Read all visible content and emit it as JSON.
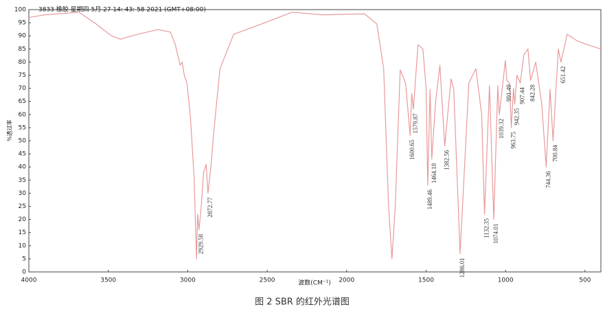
{
  "chart_data": {
    "type": "line",
    "header": "3833 橡胶 星期四 5月 27 14: 43: 58 2021 (GMT+08:00)",
    "y_label": "%透过率",
    "x_label": "波数(CM⁻¹)",
    "caption": "图 2  SBR 的红外光谱图",
    "xlim": [
      4000,
      400
    ],
    "xticks": [
      4000,
      3500,
      3000,
      2500,
      2000,
      1500,
      1000,
      500
    ],
    "ylim": [
      0,
      100
    ],
    "yticks": [
      0,
      5,
      10,
      15,
      20,
      25,
      30,
      35,
      40,
      45,
      50,
      55,
      60,
      65,
      70,
      75,
      80,
      85,
      90,
      95,
      100
    ],
    "series": [
      {
        "color": "#e8999a",
        "x": [
          4000,
          3900,
          3684,
          3576,
          3480,
          3424,
          3380,
          3316,
          3187,
          3109,
          3078,
          3048,
          3035,
          3022,
          3005,
          2983,
          2960,
          2945,
          2938,
          2929.58,
          2915,
          2900,
          2884,
          2872.77,
          2853,
          2832,
          2797,
          2711,
          2537,
          2343,
          2148,
          1888,
          1810,
          1767,
          1736,
          1715,
          1694,
          1663,
          1629,
          1600.65,
          1590,
          1579.87,
          1551,
          1520,
          1500,
          1489.46,
          1475,
          1464.18,
          1440,
          1413,
          1382.56,
          1343,
          1326,
          1286.01,
          1231,
          1187,
          1150,
          1132.35,
          1101,
          1074.01,
          1049,
          1039.32,
          1001,
          991.49,
          975,
          963.75,
          950,
          942.35,
          928,
          907.44,
          885,
          859,
          842.28,
          810,
          772,
          744.36,
          720,
          700.84,
          668,
          651.42,
          612,
          547,
          482,
          400
        ],
        "values": [
          97,
          98,
          99,
          94.5,
          90,
          88.7,
          89.5,
          90.6,
          92.4,
          91.4,
          86.6,
          78.8,
          80,
          75,
          72,
          59,
          36,
          5,
          22,
          16,
          25,
          38,
          41,
          30,
          41,
          56,
          77.5,
          90.6,
          94.5,
          99,
          98,
          98.4,
          94.5,
          77.5,
          25,
          5,
          25,
          77,
          72,
          52,
          68,
          62,
          86.6,
          85,
          70,
          33,
          69.6,
          43,
          65,
          78.8,
          48,
          73.6,
          69.6,
          7,
          72,
          77.5,
          60,
          22,
          71,
          20,
          71,
          60,
          80.6,
          73,
          72,
          55,
          70,
          64,
          75,
          72,
          82.7,
          85,
          73,
          80,
          64,
          40,
          69.6,
          50,
          85,
          80,
          90.6,
          88,
          86.6,
          85
        ]
      }
    ],
    "annotations": [
      {
        "x": 2929.58,
        "y": 16
      },
      {
        "x": 2872.77,
        "y": 30
      },
      {
        "x": 1600.65,
        "y": 52
      },
      {
        "x": 1579.87,
        "y": 62
      },
      {
        "x": 1489.46,
        "y": 33
      },
      {
        "x": 1464.18,
        "y": 43
      },
      {
        "x": 1382.56,
        "y": 48
      },
      {
        "x": 1286.01,
        "y": 7
      },
      {
        "x": 1132.35,
        "y": 22
      },
      {
        "x": 1074.01,
        "y": 20
      },
      {
        "x": 1039.32,
        "y": 60
      },
      {
        "x": 991.49,
        "y": 73
      },
      {
        "x": 963.75,
        "y": 55
      },
      {
        "x": 942.35,
        "y": 64
      },
      {
        "x": 907.44,
        "y": 72
      },
      {
        "x": 842.28,
        "y": 73
      },
      {
        "x": 744.36,
        "y": 40
      },
      {
        "x": 700.84,
        "y": 50
      },
      {
        "x": 651.42,
        "y": 80
      }
    ]
  }
}
